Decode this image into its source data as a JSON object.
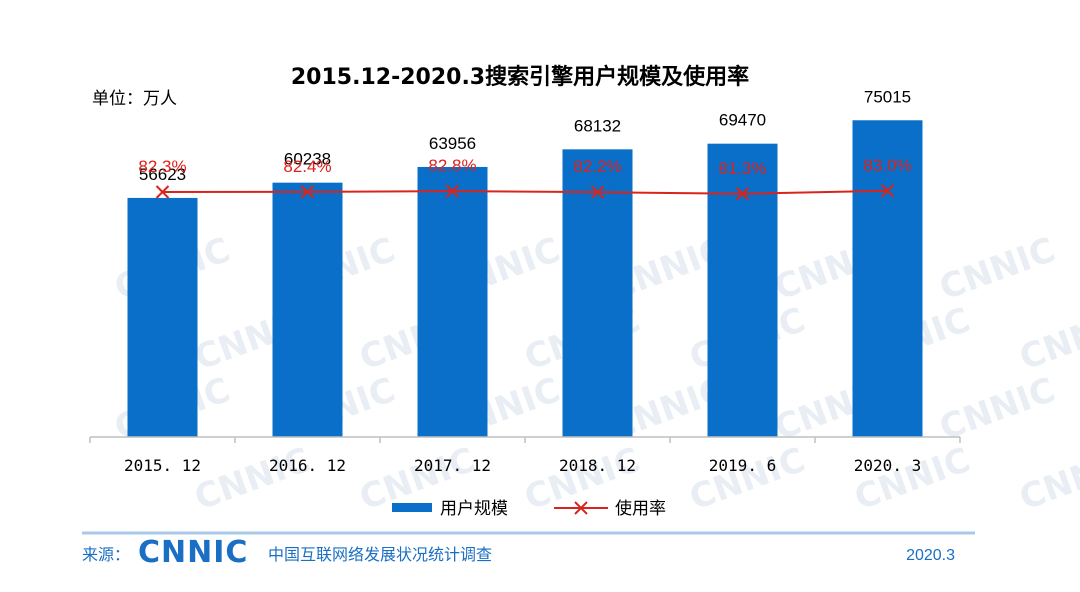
{
  "chart_data": {
    "type": "bar",
    "title": "2015.12-2020.3搜索引擎用户规模及使用率",
    "unit_label": "单位：万人",
    "categories": [
      "2015. 12",
      "2016. 12",
      "2017. 12",
      "2018. 12",
      "2019. 6",
      "2020. 3"
    ],
    "series": [
      {
        "name": "用户规模",
        "type": "bar",
        "values": [
          56623,
          60238,
          63956,
          68132,
          69470,
          75015
        ],
        "labels": [
          "56623",
          "60238",
          "63956",
          "68132",
          "69470",
          "75015"
        ],
        "color": "#0a6fc9"
      },
      {
        "name": "使用率",
        "type": "line",
        "values": [
          82.3,
          82.4,
          82.8,
          82.2,
          81.3,
          83.0
        ],
        "labels": [
          "82.3%",
          "82.4%",
          "82.8%",
          "82.2%",
          "81.3%",
          "83.0%"
        ],
        "color": "#d9241c"
      }
    ],
    "ylim_bars": [
      0,
      90000
    ],
    "ylim_rate": [
      60,
      90
    ],
    "legend_position": "bottom",
    "grid": false
  },
  "footer": {
    "source_label": "来源：",
    "logo": "CNNIC",
    "source_text": "中国互联网络发展状况统计调查",
    "date": "2020.3"
  },
  "watermark": "CNNIC",
  "colors": {
    "accent": "#1a6fc4",
    "bar": "#0a6fc9",
    "line": "#d9241c"
  }
}
